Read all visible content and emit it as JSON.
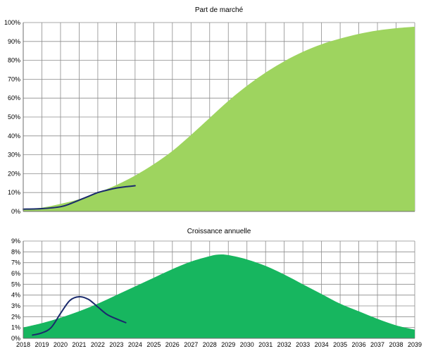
{
  "chart_data": [
    {
      "type": "area",
      "title": "Part de marché",
      "x": [
        2018,
        2019,
        2020,
        2021,
        2022,
        2023,
        2024,
        2025,
        2026,
        2027,
        2028,
        2029,
        2030,
        2031,
        2032,
        2033,
        2034,
        2035,
        2036,
        2037,
        2038,
        2039
      ],
      "ylim": [
        0,
        100
      ],
      "y_ticks": [
        "0%",
        "10%",
        "20%",
        "30%",
        "40%",
        "50%",
        "60%",
        "70%",
        "80%",
        "90%",
        "100%"
      ],
      "grid": true,
      "series": [
        {
          "kind": "area",
          "color": "#9ed45f",
          "x": [
            2018,
            2019,
            2020,
            2021,
            2022,
            2023,
            2024,
            2025,
            2026,
            2027,
            2028,
            2029,
            2030,
            2031,
            2032,
            2033,
            2034,
            2035,
            2036,
            2037,
            2038,
            2039
          ],
          "values": [
            1.2,
            2.0,
            4.0,
            6.5,
            10.0,
            14.0,
            19.0,
            25.0,
            32.0,
            40.5,
            49.5,
            58.5,
            66.5,
            73.5,
            79.5,
            84.5,
            88.5,
            91.5,
            94.0,
            95.8,
            97.0,
            97.8
          ]
        },
        {
          "kind": "line",
          "color": "#1a2a6c",
          "x": [
            2018,
            2019,
            2020,
            2020.5,
            2021,
            2021.5,
            2022,
            2022.5,
            2023,
            2023.5,
            2024
          ],
          "values": [
            1.2,
            1.5,
            2.5,
            4.0,
            6.0,
            8.0,
            10.0,
            11.3,
            12.4,
            13.1,
            13.6
          ]
        }
      ]
    },
    {
      "type": "area",
      "title": "Croissance annuelle",
      "x": [
        2018,
        2019,
        2020,
        2021,
        2022,
        2023,
        2024,
        2025,
        2026,
        2027,
        2028,
        2029,
        2030,
        2031,
        2032,
        2033,
        2034,
        2035,
        2036,
        2037,
        2038,
        2039
      ],
      "x_tick_labels": [
        "2018",
        "2019",
        "2020",
        "2021",
        "2022",
        "2023",
        "2024",
        "2025",
        "2026",
        "2027",
        "2028",
        "2029",
        "2030",
        "2031",
        "2032",
        "2033",
        "2034",
        "2035",
        "2036",
        "2037",
        "2038",
        "2039"
      ],
      "ylim": [
        0,
        9
      ],
      "y_ticks": [
        "0%",
        "1%",
        "2%",
        "3%",
        "4%",
        "5%",
        "6%",
        "7%",
        "8%",
        "9%"
      ],
      "grid": true,
      "series": [
        {
          "kind": "area",
          "color": "#17b65f",
          "x": [
            2018,
            2019,
            2020,
            2021,
            2022,
            2023,
            2024,
            2025,
            2026,
            2027,
            2028,
            2028.5,
            2029,
            2030,
            2031,
            2032,
            2033,
            2034,
            2035,
            2036,
            2037,
            2038,
            2039
          ],
          "values": [
            1.0,
            1.4,
            1.9,
            2.5,
            3.2,
            4.0,
            4.8,
            5.6,
            6.4,
            7.1,
            7.6,
            7.75,
            7.7,
            7.3,
            6.7,
            5.9,
            5.0,
            4.1,
            3.2,
            2.5,
            1.8,
            1.2,
            0.8
          ]
        },
        {
          "kind": "line",
          "color": "#1a2a6c",
          "x": [
            2018.5,
            2019,
            2019.5,
            2020,
            2020.5,
            2021,
            2021.5,
            2022,
            2022.5,
            2023,
            2023.5
          ],
          "values": [
            0.3,
            0.5,
            1.0,
            2.3,
            3.5,
            3.85,
            3.6,
            2.9,
            2.2,
            1.8,
            1.45
          ]
        }
      ]
    }
  ]
}
